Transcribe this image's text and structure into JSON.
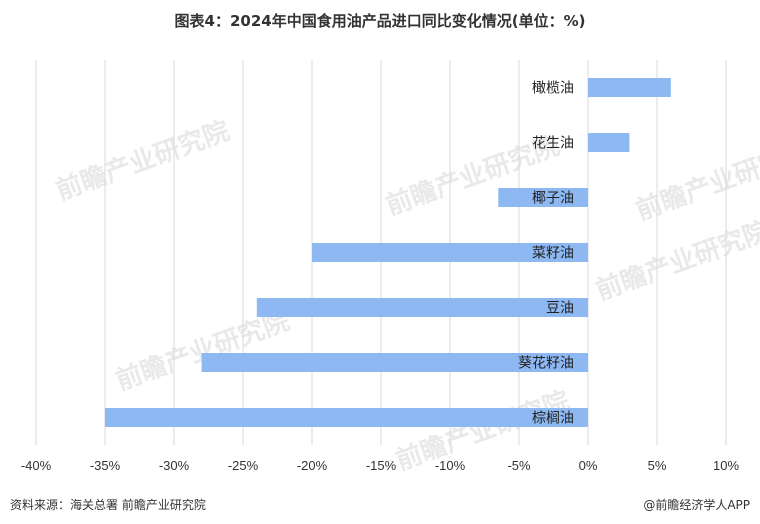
{
  "title": "图表4：2024年中国食用油产品进口同比变化情况(单位：%)",
  "source": "资料来源：海关总署 前瞻产业研究院",
  "brand": "@前瞻经济学人APP",
  "watermark": "前瞻产业研究院",
  "colors": {
    "bar": "#8db8f2",
    "grid": "#d9d9d9",
    "text": "#333333"
  },
  "chart_data": {
    "type": "bar",
    "orientation": "horizontal",
    "categories": [
      "橄榄油",
      "花生油",
      "椰子油",
      "菜籽油",
      "豆油",
      "葵花籽油",
      "棕榈油"
    ],
    "values": [
      6,
      3,
      -6.5,
      -20,
      -24,
      -28,
      -35
    ],
    "xlim": [
      -40,
      10
    ],
    "xticks": [
      -40,
      -35,
      -30,
      -25,
      -20,
      -15,
      -10,
      -5,
      0,
      5,
      10
    ],
    "tick_suffix": "%",
    "grid": true,
    "title": "图表4：2024年中国食用油产品进口同比变化情况(单位：%)"
  }
}
